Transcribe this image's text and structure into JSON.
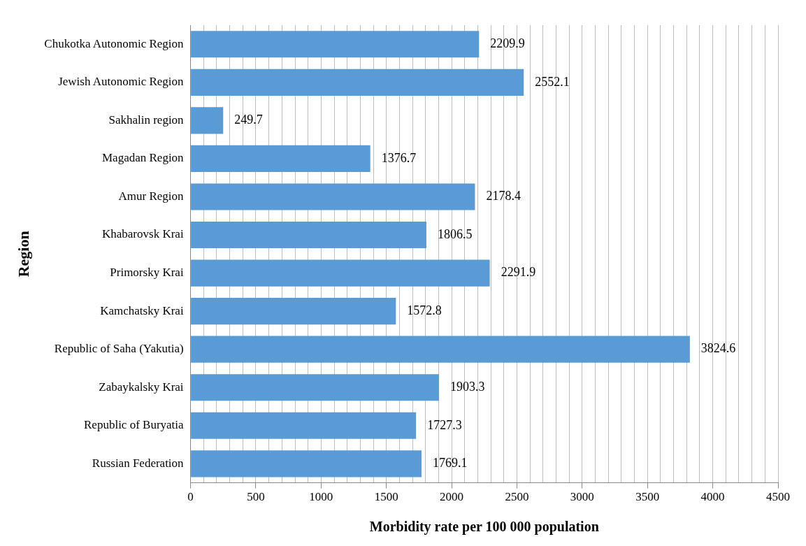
{
  "chart_data": {
    "type": "bar",
    "orientation": "horizontal",
    "xlabel": "Morbidity rate per 100 000 population",
    "ylabel": "Region",
    "categories": [
      "Chukotka Autonomic Region",
      "Jewish Autonomic Region",
      "Sakhalin region",
      "Magadan Region",
      "Amur Region",
      "Khabarovsk Krai",
      "Primorsky Krai",
      "Kamchatsky Krai",
      "Republic of Saha (Yakutia)",
      "Zabaykalsky Krai",
      "Republic of Buryatia",
      "Russian Federation"
    ],
    "values": [
      2209.9,
      2552.1,
      249.7,
      1376.7,
      2178.4,
      1806.5,
      2291.9,
      1572.8,
      3824.6,
      1903.3,
      1727.3,
      1769.1
    ],
    "color": "#5b9bd5",
    "xlim": [
      0,
      4500
    ],
    "xticks": [
      0,
      {
        "value": 100,
        "label": null
      },
      {
        "value": 200,
        "label": null
      },
      {
        "value": 300,
        "label": null
      },
      {
        "value": 400,
        "label": null
      },
      500,
      {
        "value": 600,
        "label": null
      },
      {
        "value": 700,
        "label": null
      },
      {
        "value": 800,
        "label": null
      },
      {
        "value": 900,
        "label": null
      },
      1000,
      {
        "value": 1100,
        "label": null
      },
      {
        "value": 1200,
        "label": null
      },
      {
        "value": 1300,
        "label": null
      },
      {
        "value": 1400,
        "label": null
      },
      1500,
      {
        "value": 1600,
        "label": null
      },
      {
        "value": 1700,
        "label": null
      },
      {
        "value": 1800,
        "label": null
      },
      {
        "value": 1900,
        "label": null
      },
      2000,
      {
        "value": 2100,
        "label": null
      },
      {
        "value": 2200,
        "label": null
      },
      {
        "value": 2300,
        "label": null
      },
      {
        "value": 2400,
        "label": null
      },
      2500,
      {
        "value": 2600,
        "label": null
      },
      {
        "value": 2700,
        "label": null
      },
      {
        "value": 2800,
        "label": null
      },
      {
        "value": 2900,
        "label": null
      },
      3000,
      {
        "value": 3100,
        "label": null
      },
      {
        "value": 3200,
        "label": null
      },
      {
        "value": 3300,
        "label": null
      },
      {
        "value": 3400,
        "label": null
      },
      3500,
      {
        "value": 3600,
        "label": null
      },
      {
        "value": 3700,
        "label": null
      },
      {
        "value": 3800,
        "label": null
      },
      {
        "value": 3900,
        "label": null
      },
      4000,
      {
        "value": 4100,
        "label": null
      },
      {
        "value": 4200,
        "label": null
      },
      {
        "value": 4300,
        "label": null
      },
      {
        "value": 4400,
        "label": null
      },
      4500
    ],
    "grid": "x",
    "data_labels": true,
    "legend": false
  }
}
